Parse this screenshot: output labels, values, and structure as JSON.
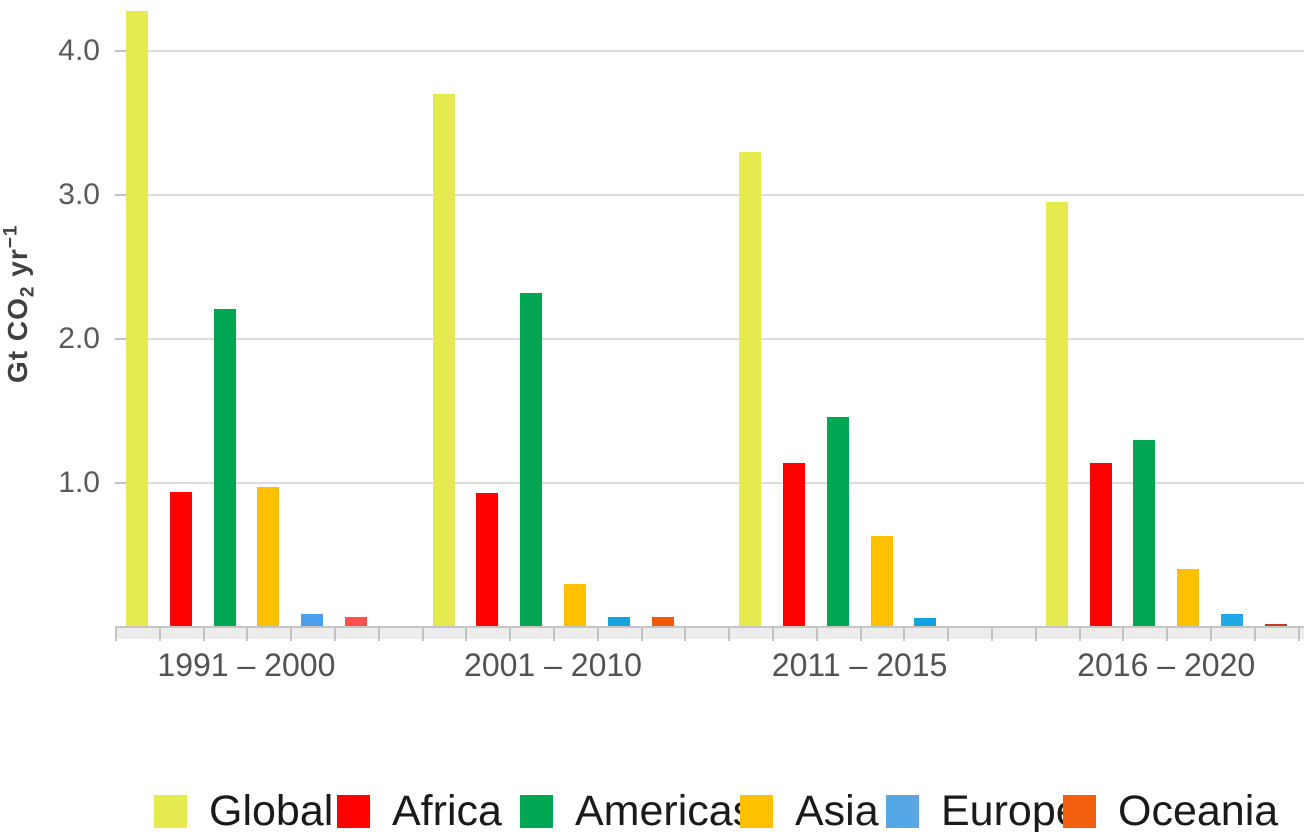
{
  "colors": {
    "background": "#FFFFFF",
    "gridline": "#DCDCDC",
    "gridline_tick": "#C2C2C2",
    "axis_line": "#C6C6C6",
    "axis_strip": "#ECECEC",
    "axis_tick": "#C2C2C2",
    "tick_label_text": "#595959",
    "category_label_text": "#525252",
    "legend_text": "#1A1A1A",
    "ylabel_text": "#404040"
  },
  "chart_data": {
    "type": "bar",
    "title": "",
    "xlabel": "",
    "ylabel": "Gt CO2 yr-1",
    "ylabel_parts": {
      "pre": "Gt CO",
      "sub": "2",
      "mid": " yr",
      "sup": "−1"
    },
    "categories": [
      "1991 – 2000",
      "2001 – 2010",
      "2011 – 2015",
      "2016 – 2020"
    ],
    "y_ticks": [
      {
        "value": 4.0,
        "label": "4.0"
      },
      {
        "value": 3.0,
        "label": "3.0"
      },
      {
        "value": 2.0,
        "label": "2.0"
      },
      {
        "value": 1.0,
        "label": "1.0"
      }
    ],
    "ylim": [
      0,
      4.35
    ],
    "grid": true,
    "legend_position": "bottom",
    "series": [
      {
        "name": "Global",
        "color": "#E5EB4F",
        "values": [
          4.28,
          3.7,
          3.3,
          2.95
        ]
      },
      {
        "name": "Africa",
        "color": "#FE0000",
        "values": [
          0.94,
          0.93,
          1.14,
          1.14
        ]
      },
      {
        "name": "Americas",
        "color": "#00A651",
        "values": [
          2.21,
          2.32,
          1.46,
          1.3
        ]
      },
      {
        "name": "Asia",
        "color": "#FFC000",
        "values": [
          0.97,
          0.3,
          0.63,
          0.4
        ]
      },
      {
        "name": "Europe",
        "color": "#55A7E8",
        "values": [
          0.09,
          0.07,
          0.06,
          0.09
        ],
        "bar_colors": [
          "#4D9FEE",
          "#1BA2DE",
          "#15A3E0",
          "#1FAAE5"
        ]
      },
      {
        "name": "Oceania",
        "color": "#F2600D",
        "values": [
          0.07,
          0.07,
          0,
          0.02
        ],
        "bar_colors": [
          "#FF5050",
          "#EE5A0C",
          null,
          "#C23B22"
        ]
      }
    ]
  }
}
